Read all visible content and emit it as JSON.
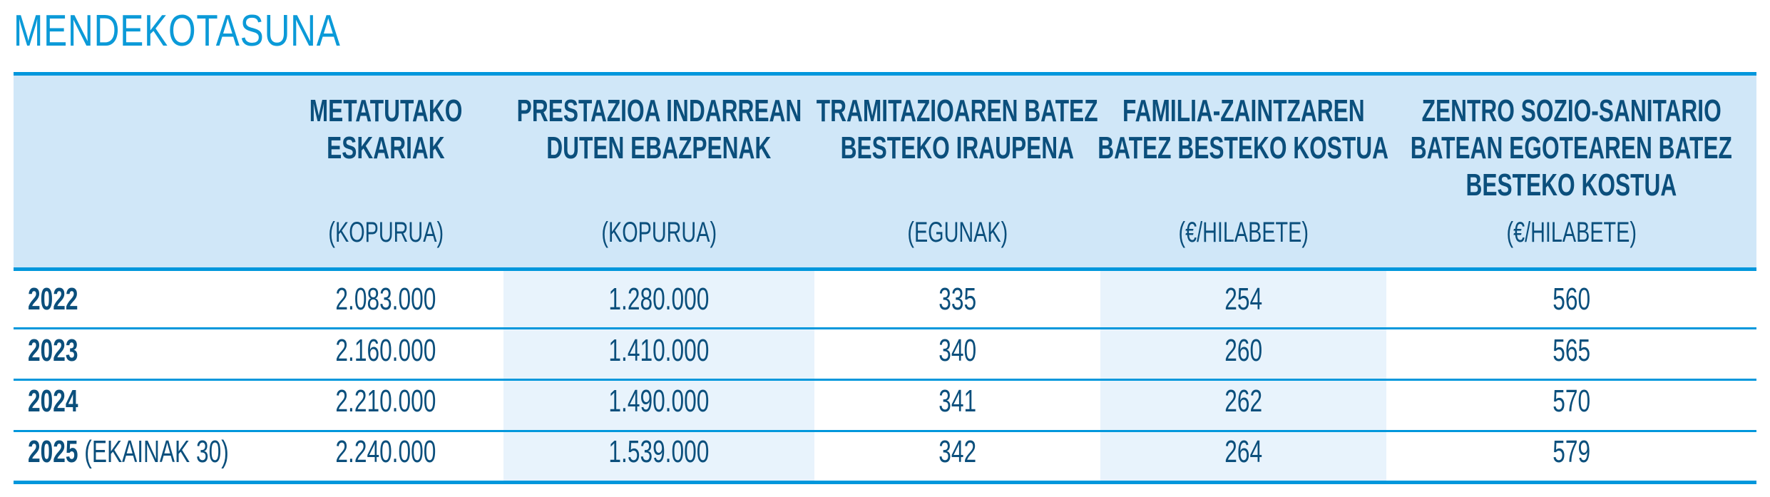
{
  "title": "MENDEKOTASUNA",
  "colors": {
    "title": "#0b9ad8",
    "header_bg": "#d0e7f8",
    "border": "#0097dc",
    "text": "#0b4f7c",
    "shaded_column": "#e8f3fc"
  },
  "columns": [
    {
      "line1": "METATUTAKO",
      "line2": "ESKARIAK",
      "unit": "(KOPURUA)"
    },
    {
      "line1": "PRESTAZIOA INDARREAN",
      "line2": "DUTEN EBAZPENAK",
      "unit": "(KOPURUA)"
    },
    {
      "line1": "TRAMITAZIOAREN BATEZ",
      "line2": "BESTEKO IRAUPENA",
      "unit": "(EGUNAK)"
    },
    {
      "line1": "FAMILIA-ZAINTZAREN",
      "line2": "BATEZ  BESTEKO KOSTUA",
      "unit": "(€/HILABETE)"
    },
    {
      "line1": "ZENTRO SOZIO-SANITARIO",
      "line2": "BATEAN EGOTEAREN BATEZ",
      "line3": "BESTEKO KOSTUA",
      "unit": "(€/HILABETE)"
    }
  ],
  "rows": [
    {
      "year": "2022",
      "note": "",
      "values": [
        "2.083.000",
        "1.280.000",
        "335",
        "254",
        "560"
      ]
    },
    {
      "year": "2023",
      "note": "",
      "values": [
        "2.160.000",
        "1.410.000",
        "340",
        "260",
        "565"
      ]
    },
    {
      "year": "2024",
      "note": "",
      "values": [
        "2.210.000",
        "1.490.000",
        "341",
        "262",
        "570"
      ]
    },
    {
      "year": "2025",
      "note": "(EKAINAK 30)",
      "values": [
        "2.240.000",
        "1.539.000",
        "342",
        "264",
        "579"
      ]
    }
  ]
}
